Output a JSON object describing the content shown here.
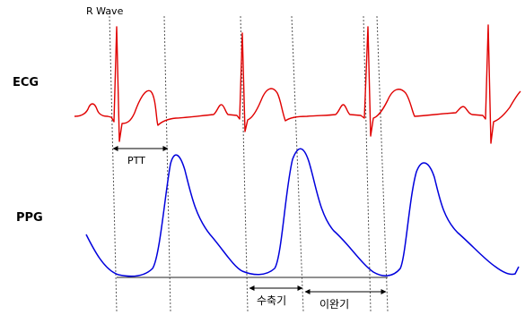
{
  "labels": {
    "r_wave": "R Wave",
    "ecg": "ECG",
    "ppg": "PPG",
    "ptt": "PTT",
    "systole": "수축기",
    "diastole": "이완기"
  },
  "colors": {
    "ecg_trace": "#e00000",
    "ppg_trace": "#0000dd",
    "guide_line": "#555555",
    "text": "#000000"
  }
}
